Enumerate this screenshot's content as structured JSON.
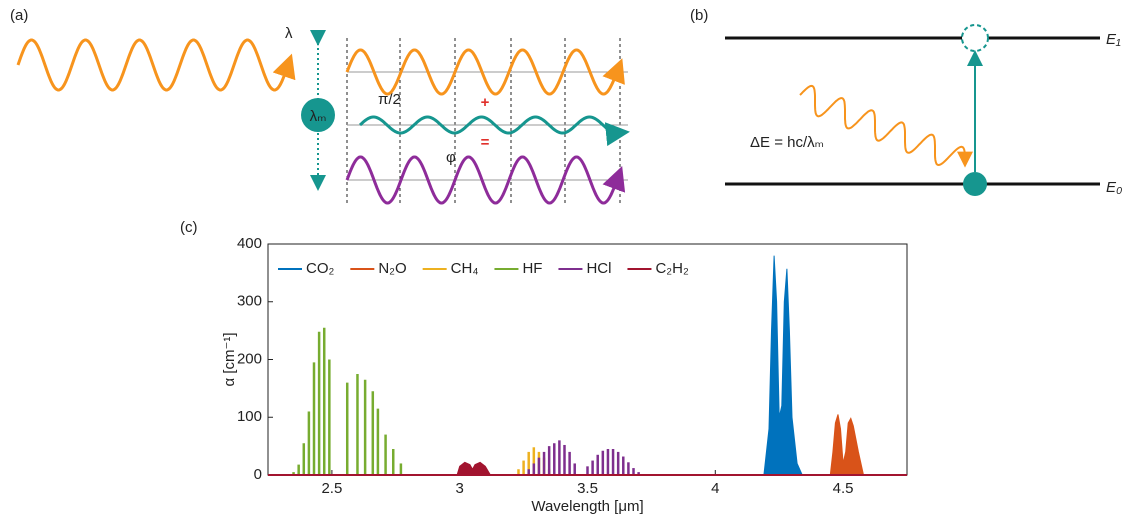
{
  "panel_a": {
    "label": "(a)",
    "lambda": "λ",
    "lambda_m": "λₘ",
    "phase_shift": "π/2",
    "plus": "+",
    "equals": "=",
    "phi": "φ"
  },
  "panel_b": {
    "label": "(b)",
    "upper_level": "E₁",
    "lower_level": "E₀",
    "energy": "ΔE = hc/λₘ"
  },
  "panel_c": {
    "label": "(c)"
  },
  "chart_data": {
    "type": "spectrum",
    "xlabel": "Wavelength [μm]",
    "ylabel": "α [cm⁻¹]",
    "xlim": [
      2.25,
      4.75
    ],
    "xticks": [
      2.5,
      3,
      3.5,
      4,
      4.5
    ],
    "ylim": [
      0,
      400
    ],
    "yticks": [
      0,
      100,
      200,
      300,
      400
    ],
    "legend": "upper left",
    "series": [
      {
        "name": "CO₂",
        "color": "#0072bd",
        "style": "area",
        "x": [
          4.19,
          4.21,
          4.22,
          4.23,
          4.24,
          4.25,
          4.26,
          4.27,
          4.28,
          4.29,
          4.3,
          4.32,
          4.34
        ],
        "values": [
          0,
          80,
          250,
          380,
          300,
          100,
          120,
          300,
          357,
          250,
          100,
          20,
          0
        ]
      },
      {
        "name": "N₂O",
        "color": "#d95319",
        "style": "area",
        "x": [
          4.45,
          4.46,
          4.47,
          4.48,
          4.49,
          4.5,
          4.51,
          4.52,
          4.53,
          4.54,
          4.56,
          4.58
        ],
        "values": [
          0,
          40,
          90,
          105,
          80,
          20,
          40,
          90,
          98,
          85,
          40,
          0
        ]
      },
      {
        "name": "CH₄",
        "color": "#edb120",
        "style": "stick",
        "x": [
          3.23,
          3.25,
          3.27,
          3.29,
          3.31,
          3.33,
          3.35
        ],
        "values": [
          10,
          25,
          40,
          48,
          40,
          30,
          10
        ]
      },
      {
        "name": "HF",
        "color": "#77ac30",
        "style": "stick",
        "x": [
          2.35,
          2.37,
          2.39,
          2.41,
          2.43,
          2.45,
          2.47,
          2.49,
          2.56,
          2.6,
          2.63,
          2.66,
          2.68,
          2.71,
          2.74,
          2.77
        ],
        "values": [
          5,
          18,
          55,
          110,
          195,
          248,
          255,
          200,
          160,
          175,
          165,
          145,
          115,
          70,
          45,
          20
        ]
      },
      {
        "name": "HCl",
        "color": "#7e2f8e",
        "style": "stick",
        "x": [
          3.27,
          3.29,
          3.31,
          3.33,
          3.35,
          3.37,
          3.39,
          3.41,
          3.43,
          3.45,
          3.5,
          3.52,
          3.54,
          3.56,
          3.58,
          3.6,
          3.62,
          3.64,
          3.66,
          3.68,
          3.7
        ],
        "values": [
          10,
          20,
          30,
          40,
          50,
          55,
          60,
          52,
          40,
          20,
          15,
          25,
          35,
          42,
          45,
          45,
          40,
          32,
          22,
          12,
          5
        ]
      },
      {
        "name": "C₂H₂",
        "color": "#a2142f",
        "style": "area",
        "x": [
          2.99,
          3.0,
          3.02,
          3.04,
          3.05,
          3.06,
          3.08,
          3.1,
          3.12
        ],
        "values": [
          0,
          15,
          22,
          18,
          10,
          18,
          22,
          15,
          0
        ]
      }
    ]
  }
}
